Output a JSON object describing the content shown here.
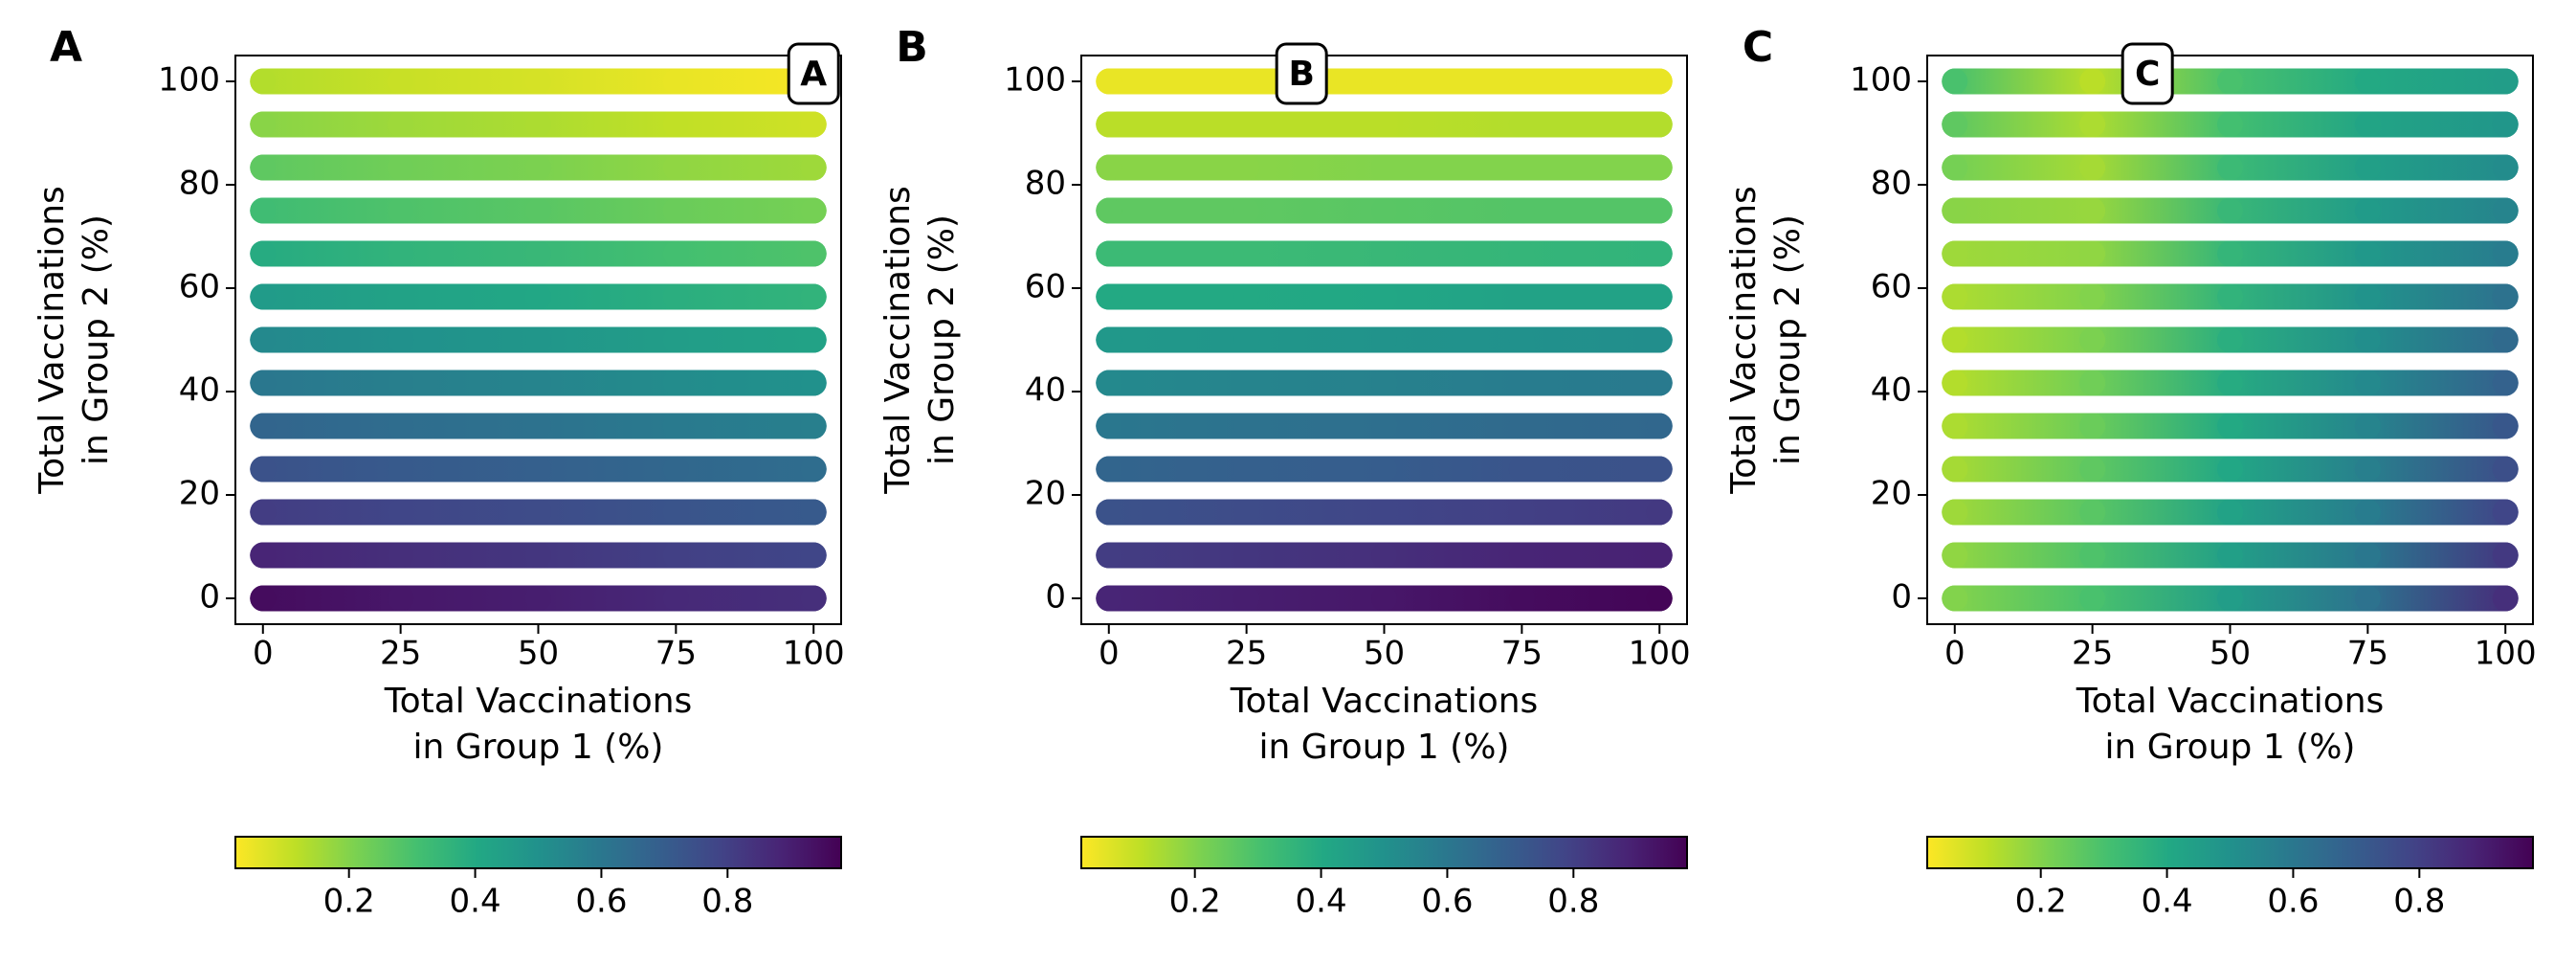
{
  "chart_data": [
    {
      "type": "scatter",
      "panel_label": "A",
      "annotation": {
        "text": "A",
        "x": 100,
        "y": 100
      },
      "xlabel": [
        "Total Vaccinations",
        "in Group 1 (%)"
      ],
      "ylabel": [
        "Total Vaccinations",
        "in Group 2 (%)"
      ],
      "xlim": [
        -5,
        105
      ],
      "ylim": [
        -5,
        105
      ],
      "xticks": [
        0,
        25,
        50,
        75,
        100
      ],
      "yticks": [
        0,
        20,
        40,
        60,
        80,
        100
      ],
      "colormap": "viridis_r",
      "clim": [
        0.02,
        0.98
      ],
      "cticks": [
        0.2,
        0.4,
        0.6,
        0.8
      ],
      "x": [
        0,
        25,
        50,
        75,
        100
      ],
      "y": [
        0,
        8.33,
        16.67,
        25,
        33.33,
        41.67,
        50,
        58.33,
        66.67,
        75,
        83.33,
        91.67,
        100
      ],
      "values": [
        [
          0.95,
          0.92,
          0.9,
          0.87,
          0.85
        ],
        [
          0.88,
          0.85,
          0.83,
          0.8,
          0.78
        ],
        [
          0.81,
          0.78,
          0.76,
          0.73,
          0.71
        ],
        [
          0.74,
          0.71,
          0.69,
          0.66,
          0.64
        ],
        [
          0.67,
          0.64,
          0.62,
          0.59,
          0.57
        ],
        [
          0.6,
          0.57,
          0.55,
          0.52,
          0.5
        ],
        [
          0.53,
          0.5,
          0.48,
          0.45,
          0.43
        ],
        [
          0.46,
          0.43,
          0.41,
          0.38,
          0.36
        ],
        [
          0.39,
          0.36,
          0.34,
          0.31,
          0.29
        ],
        [
          0.32,
          0.29,
          0.27,
          0.24,
          0.22
        ],
        [
          0.26,
          0.23,
          0.21,
          0.18,
          0.16
        ],
        [
          0.19,
          0.16,
          0.14,
          0.11,
          0.09
        ],
        [
          0.13,
          0.1,
          0.08,
          0.05,
          0.03
        ]
      ]
    },
    {
      "type": "scatter",
      "panel_label": "B",
      "annotation": {
        "text": "B",
        "x": 35,
        "y": 100
      },
      "xlabel": [
        "Total Vaccinations",
        "in Group 1 (%)"
      ],
      "ylabel": [
        "Total Vaccinations",
        "in Group 2 (%)"
      ],
      "xlim": [
        -5,
        105
      ],
      "ylim": [
        -5,
        105
      ],
      "xticks": [
        0,
        25,
        50,
        75,
        100
      ],
      "yticks": [
        0,
        20,
        40,
        60,
        80,
        100
      ],
      "colormap": "viridis_r",
      "clim": [
        0.02,
        0.98
      ],
      "cticks": [
        0.2,
        0.4,
        0.6,
        0.8
      ],
      "x": [
        0,
        25,
        50,
        75,
        100
      ],
      "y": [
        0,
        8.33,
        16.67,
        25,
        33.33,
        41.67,
        50,
        58.33,
        66.67,
        75,
        83.33,
        91.67,
        100
      ],
      "values": [
        [
          0.88,
          0.9,
          0.92,
          0.95,
          0.97
        ],
        [
          0.81,
          0.83,
          0.85,
          0.88,
          0.89
        ],
        [
          0.74,
          0.76,
          0.78,
          0.8,
          0.82
        ],
        [
          0.67,
          0.69,
          0.7,
          0.73,
          0.74
        ],
        [
          0.6,
          0.62,
          0.63,
          0.65,
          0.66
        ],
        [
          0.53,
          0.55,
          0.56,
          0.58,
          0.59
        ],
        [
          0.47,
          0.48,
          0.49,
          0.5,
          0.51
        ],
        [
          0.4,
          0.4,
          0.41,
          0.43,
          0.43
        ],
        [
          0.33,
          0.33,
          0.34,
          0.35,
          0.36
        ],
        [
          0.26,
          0.26,
          0.27,
          0.28,
          0.28
        ],
        [
          0.19,
          0.19,
          0.2,
          0.2,
          0.2
        ],
        [
          0.12,
          0.12,
          0.12,
          0.13,
          0.13
        ],
        [
          0.05,
          0.05,
          0.05,
          0.05,
          0.05
        ]
      ]
    },
    {
      "type": "scatter",
      "panel_label": "C",
      "annotation": {
        "text": "C",
        "x": 35,
        "y": 100
      },
      "xlabel": [
        "Total Vaccinations",
        "in Group 1 (%)"
      ],
      "ylabel": [
        "Total Vaccinations",
        "in Group 2 (%)"
      ],
      "xlim": [
        -5,
        105
      ],
      "ylim": [
        -5,
        105
      ],
      "xticks": [
        0,
        25,
        50,
        75,
        100
      ],
      "yticks": [
        0,
        20,
        40,
        60,
        80,
        100
      ],
      "colormap": "viridis_r",
      "clim": [
        0.02,
        0.98
      ],
      "cticks": [
        0.2,
        0.4,
        0.6,
        0.8
      ],
      "x": [
        0,
        25,
        50,
        75,
        100
      ],
      "y": [
        0,
        8.33,
        16.67,
        25,
        33.33,
        41.67,
        50,
        58.33,
        66.67,
        75,
        83.33,
        91.67,
        100
      ],
      "values": [
        [
          0.2,
          0.3,
          0.45,
          0.62,
          0.85
        ],
        [
          0.18,
          0.29,
          0.44,
          0.6,
          0.82
        ],
        [
          0.16,
          0.27,
          0.43,
          0.58,
          0.78
        ],
        [
          0.15,
          0.26,
          0.41,
          0.57,
          0.75
        ],
        [
          0.14,
          0.24,
          0.4,
          0.55,
          0.72
        ],
        [
          0.13,
          0.23,
          0.39,
          0.53,
          0.68
        ],
        [
          0.13,
          0.21,
          0.38,
          0.51,
          0.65
        ],
        [
          0.14,
          0.2,
          0.36,
          0.49,
          0.62
        ],
        [
          0.16,
          0.18,
          0.35,
          0.47,
          0.58
        ],
        [
          0.19,
          0.17,
          0.34,
          0.46,
          0.55
        ],
        [
          0.22,
          0.15,
          0.33,
          0.44,
          0.52
        ],
        [
          0.26,
          0.14,
          0.31,
          0.42,
          0.48
        ],
        [
          0.3,
          0.12,
          0.3,
          0.4,
          0.45
        ]
      ]
    }
  ]
}
